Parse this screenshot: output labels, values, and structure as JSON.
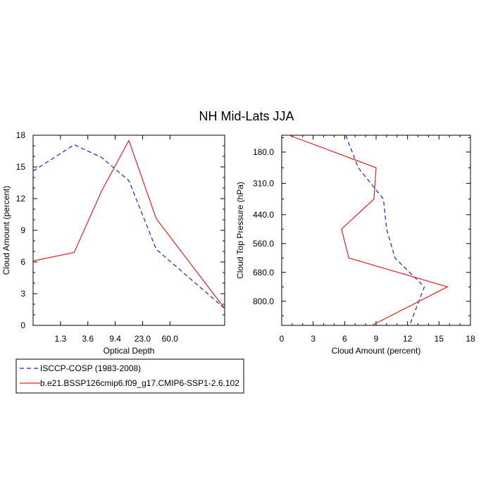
{
  "title": "NH Mid-Lats JJA",
  "colors": {
    "isccp": "#1f1fd0",
    "model": "#e02020"
  },
  "legend": [
    {
      "label": "ISCCP-COSP (1983-2008)",
      "style": "dashed",
      "color": "#1f1fd0"
    },
    {
      "label": "b.e21.BSSP126cmip6.f09_g17.CMIP6-SSP1-2.6.102",
      "style": "solid",
      "color": "#e02020"
    }
  ],
  "chart_data": [
    {
      "type": "line",
      "xlabel": "Optical Depth",
      "ylabel": "Cloud Amount (percent)",
      "x_tick_labels": [
        "1.3",
        "3.6",
        "9.4",
        "23.0",
        "60.0"
      ],
      "x_categories": 7,
      "ylim": [
        0,
        18
      ],
      "y_ticks": [
        "0",
        "3",
        "6",
        "9",
        "12",
        "15",
        "18"
      ],
      "series": [
        {
          "name": "ISCCP-COSP (1983-2008)",
          "values": [
            14.6,
            17.1,
            15.9,
            13.7,
            7.2,
            1.6
          ]
        },
        {
          "name": "b.e21.BSSP126cmip6.f09_g17.CMIP6-SSP1-2.6.102",
          "values": [
            6.1,
            6.9,
            12.7,
            17.5,
            10.1,
            1.6
          ]
        }
      ]
    },
    {
      "type": "line",
      "xlabel": "Cloud Amount (percent)",
      "ylabel": "Cloud Top Pressure (hPa)",
      "xlim": [
        0,
        18
      ],
      "x_ticks": [
        "0",
        "3",
        "6",
        "9",
        "12",
        "15",
        "18"
      ],
      "y_tick_labels": [
        "180.0",
        "310.0",
        "440.0",
        "560.0",
        "680.0",
        "800.0"
      ],
      "y_reversed": true,
      "series": [
        {
          "name": "ISCCP-COSP (1983-2008)",
          "pressure": [
            120,
            245,
            375,
            500,
            620,
            740,
            860
          ],
          "values": [
            6.1,
            7.3,
            9.7,
            10.0,
            10.8,
            13.6,
            12.2
          ]
        },
        {
          "name": "b.e21.BSSP126cmip6.f09_g17.CMIP6-SSP1-2.6.102",
          "pressure": [
            120,
            245,
            375,
            500,
            620,
            740,
            860
          ],
          "values": [
            0.7,
            9.0,
            8.8,
            5.7,
            6.4,
            15.8,
            8.6
          ]
        }
      ]
    }
  ]
}
